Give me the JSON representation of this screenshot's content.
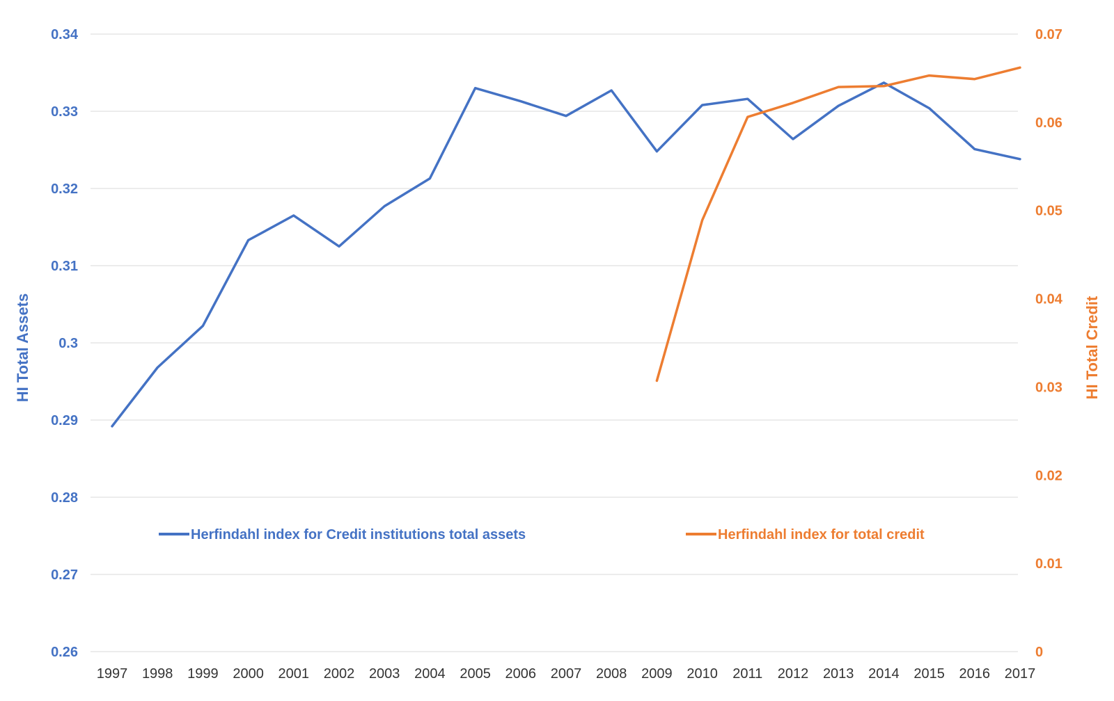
{
  "chart_data": {
    "type": "line",
    "title": "",
    "xlabel": "",
    "categories": [
      "1997",
      "1998",
      "1999",
      "2000",
      "2001",
      "2002",
      "2003",
      "2004",
      "2005",
      "2006",
      "2007",
      "2008",
      "2009",
      "2010",
      "2011",
      "2012",
      "2013",
      "2014",
      "2015",
      "2016",
      "2017"
    ],
    "series": [
      {
        "name": "Herfindahl index for Credit institutions total assets",
        "axis": "left",
        "color": "#4472C4",
        "values": [
          0.2892,
          0.2968,
          0.3022,
          0.3133,
          0.3165,
          0.3125,
          0.3177,
          0.3213,
          0.333,
          0.3313,
          0.3294,
          0.3327,
          0.3248,
          0.3308,
          0.3316,
          0.3264,
          0.3307,
          0.3337,
          0.3304,
          0.3251,
          0.3238
        ]
      },
      {
        "name": "Herfindahl index for total credit",
        "axis": "right",
        "color": "#ED7D31",
        "values": [
          null,
          null,
          null,
          null,
          null,
          null,
          null,
          null,
          null,
          null,
          null,
          null,
          0.0307,
          0.0489,
          0.0606,
          0.0622,
          0.064,
          0.0641,
          0.0653,
          0.0649,
          0.0662
        ]
      }
    ],
    "y_left": {
      "label": "HI Total Assets",
      "ylim": [
        0.26,
        0.34
      ],
      "ticks": [
        0.26,
        0.27,
        0.28,
        0.29,
        0.3,
        0.31,
        0.32,
        0.33,
        0.34
      ],
      "tick_labels": [
        "0.26",
        "0.27",
        "0.28",
        "0.29",
        "0.3",
        "0.31",
        "0.32",
        "0.33",
        "0.34"
      ]
    },
    "y_right": {
      "label": "HI Total Credit",
      "ylim": [
        0,
        0.07
      ],
      "ticks": [
        0,
        0.01,
        0.02,
        0.03,
        0.04,
        0.05,
        0.06,
        0.07
      ],
      "tick_labels": [
        "0",
        "0.01",
        "0.02",
        "0.03",
        "0.04",
        "0.05",
        "0.06",
        "0.07"
      ]
    },
    "grid": true,
    "legend_position": "center"
  },
  "colors": {
    "assets": "#4472C4",
    "credit": "#ED7D31",
    "grid": "#D9D9D9",
    "x_tick": "#333333"
  }
}
